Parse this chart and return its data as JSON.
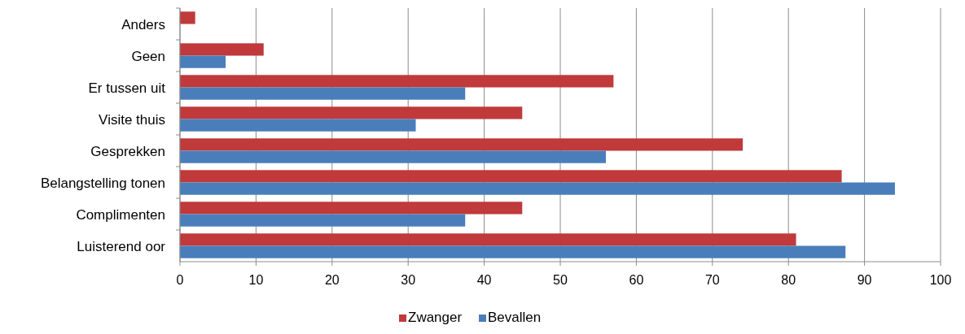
{
  "chart_data": {
    "type": "bar",
    "orientation": "horizontal",
    "categories": [
      "Anders",
      "Geen",
      "Er tussen uit",
      "Visite thuis",
      "Gesprekken",
      "Belangstelling tonen",
      "Complimenten",
      "Luisterend oor"
    ],
    "series": [
      {
        "name": "Zwanger",
        "color": "#c0393b",
        "values": [
          2,
          11,
          57,
          45,
          74,
          87,
          45,
          81
        ]
      },
      {
        "name": "Bevallen",
        "color": "#4a7ebb",
        "values": [
          null,
          6,
          37.5,
          31,
          56,
          94,
          37.5,
          87.5
        ]
      }
    ],
    "xlim": [
      0,
      100
    ],
    "xticks": [
      0,
      10,
      20,
      30,
      40,
      50,
      60,
      70,
      80,
      90,
      100
    ],
    "grid": "x",
    "legend": "bottom"
  }
}
